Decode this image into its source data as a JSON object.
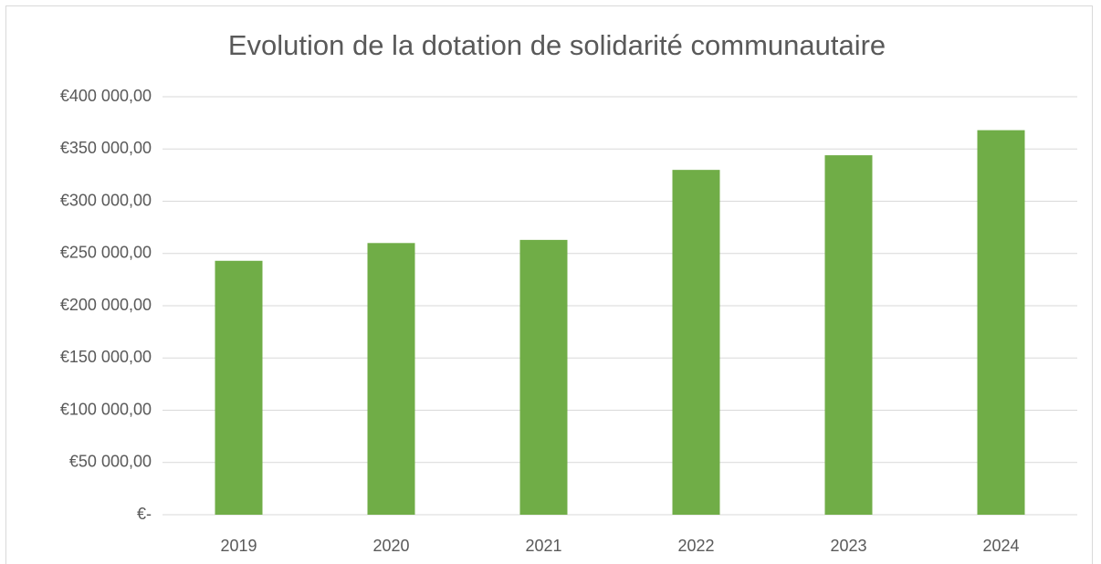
{
  "chart_data": {
    "type": "bar",
    "title": "Evolution de la dotation de solidarité communautaire",
    "categories": [
      "2019",
      "2020",
      "2021",
      "2022",
      "2023",
      "2024"
    ],
    "values": [
      243000,
      260000,
      263000,
      330000,
      344000,
      368000
    ],
    "color": "#70ad47",
    "ylim": [
      0,
      400000
    ],
    "yticks": [
      {
        "value": 0,
        "label": "€-"
      },
      {
        "value": 50000,
        "label": "€50 000,00"
      },
      {
        "value": 100000,
        "label": "€100 000,00"
      },
      {
        "value": 150000,
        "label": "€150 000,00"
      },
      {
        "value": 200000,
        "label": "€200 000,00"
      },
      {
        "value": 250000,
        "label": "€250 000,00"
      },
      {
        "value": 300000,
        "label": "€300 000,00"
      },
      {
        "value": 350000,
        "label": "€350 000,00"
      },
      {
        "value": 400000,
        "label": "€400 000,00"
      }
    ],
    "grid": true
  }
}
